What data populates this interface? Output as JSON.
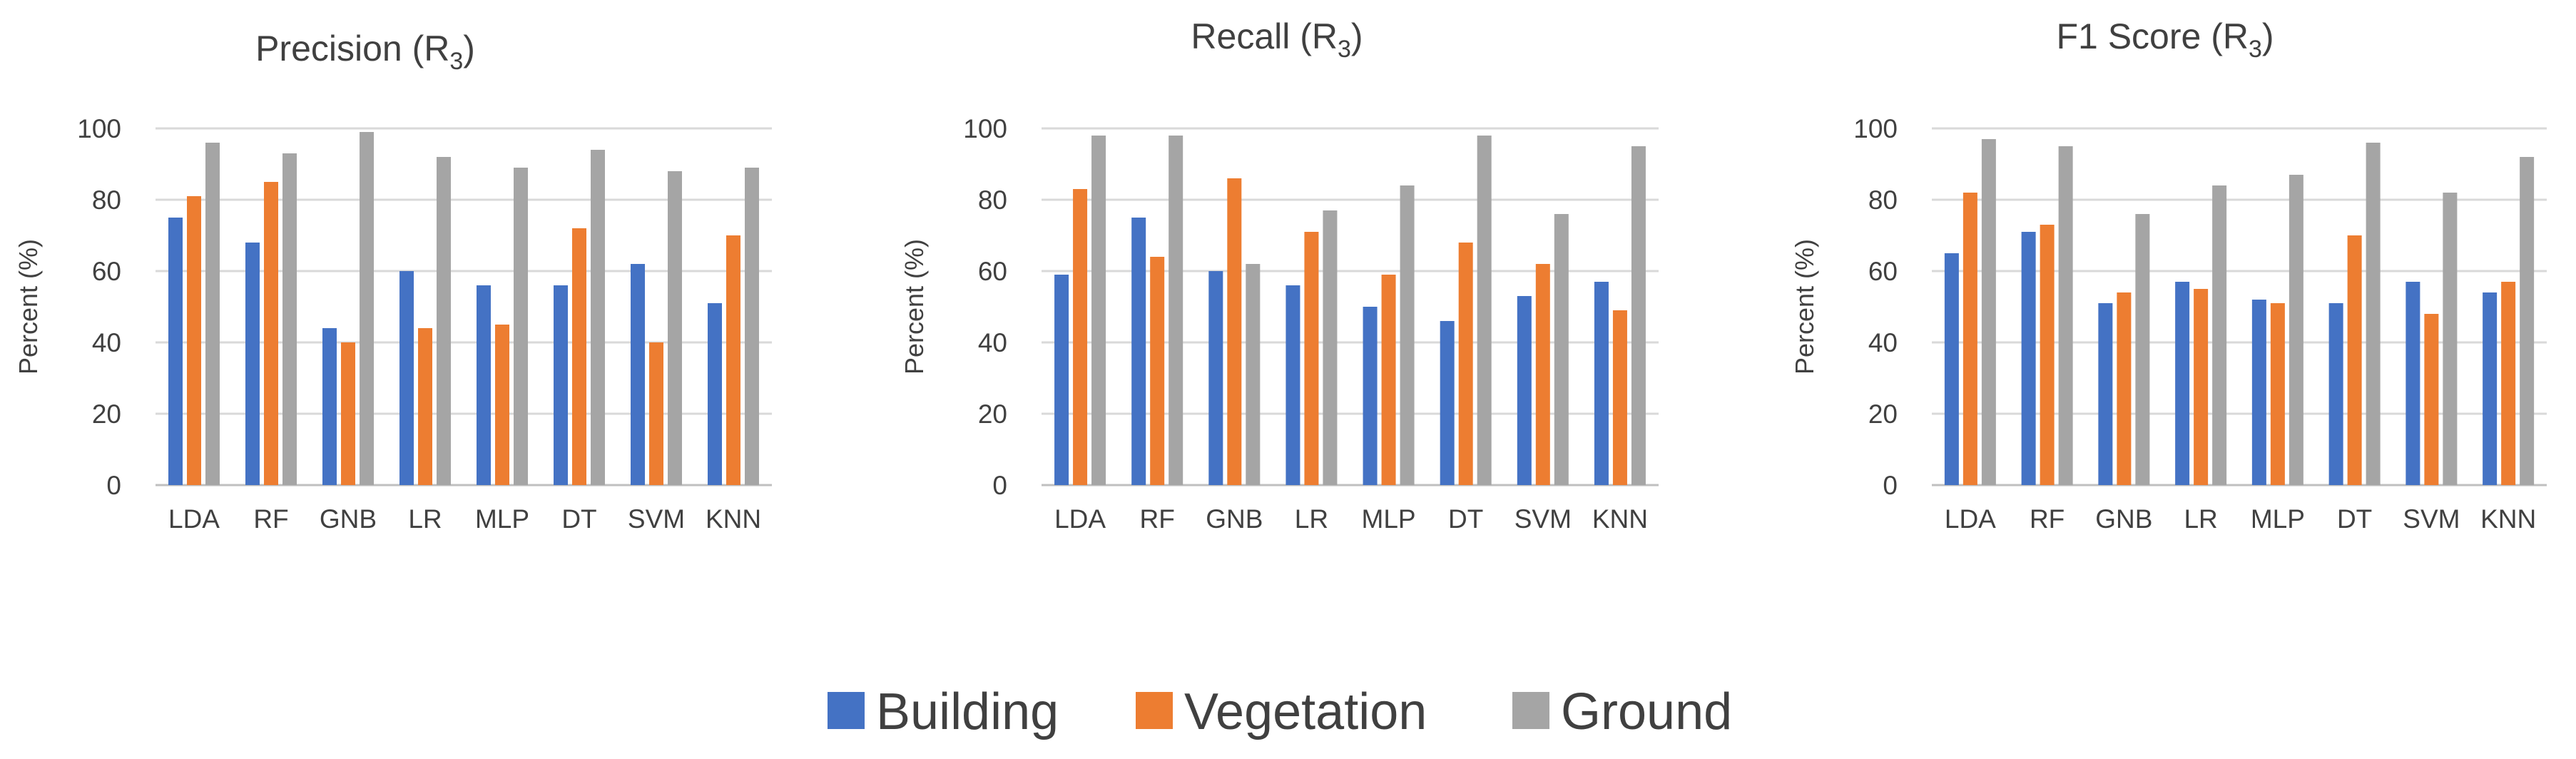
{
  "chart_data": [
    {
      "type": "bar",
      "title": "Precision (R",
      "title_subscript": "3",
      "title_suffix": ")",
      "xlabel": "",
      "ylabel": "Percent (%)",
      "ylim": [
        0,
        100
      ],
      "yticks": [
        "0",
        "20",
        "40",
        "60",
        "80",
        "100"
      ],
      "grid": true,
      "categories": [
        "LDA",
        "RF",
        "GNB",
        "LR",
        "MLP",
        "DT",
        "SVM",
        "KNN"
      ],
      "series": [
        {
          "name": "Building",
          "values": [
            75,
            68,
            44,
            60,
            56,
            56,
            62,
            51
          ]
        },
        {
          "name": "Vegetation",
          "values": [
            81,
            85,
            40,
            44,
            45,
            72,
            40,
            70
          ]
        },
        {
          "name": "Ground",
          "values": [
            96,
            93,
            99,
            92,
            89,
            94,
            88,
            89
          ]
        }
      ]
    },
    {
      "type": "bar",
      "title": "Recall (R",
      "title_subscript": "3",
      "title_suffix": ")",
      "xlabel": "",
      "ylabel": "Percent (%)",
      "ylim": [
        0,
        100
      ],
      "yticks": [
        "0",
        "20",
        "40",
        "60",
        "80",
        "100"
      ],
      "grid": true,
      "categories": [
        "LDA",
        "RF",
        "GNB",
        "LR",
        "MLP",
        "DT",
        "SVM",
        "KNN"
      ],
      "series": [
        {
          "name": "Building",
          "values": [
            59,
            75,
            60,
            56,
            50,
            46,
            53,
            57
          ]
        },
        {
          "name": "Vegetation",
          "values": [
            83,
            64,
            86,
            71,
            59,
            68,
            62,
            49
          ]
        },
        {
          "name": "Ground",
          "values": [
            98,
            98,
            62,
            77,
            84,
            98,
            76,
            95
          ]
        }
      ]
    },
    {
      "type": "bar",
      "title": "F1 Score (R",
      "title_subscript": "3",
      "title_suffix": ")",
      "xlabel": "",
      "ylabel": "Percent (%)",
      "ylim": [
        0,
        100
      ],
      "yticks": [
        "0",
        "20",
        "40",
        "60",
        "80",
        "100"
      ],
      "grid": true,
      "categories": [
        "LDA",
        "RF",
        "GNB",
        "LR",
        "MLP",
        "DT",
        "SVM",
        "KNN"
      ],
      "series": [
        {
          "name": "Building",
          "values": [
            65,
            71,
            51,
            57,
            52,
            51,
            57,
            54
          ]
        },
        {
          "name": "Vegetation",
          "values": [
            82,
            73,
            54,
            55,
            51,
            70,
            48,
            57
          ]
        },
        {
          "name": "Ground",
          "values": [
            97,
            95,
            76,
            84,
            87,
            96,
            82,
            92
          ]
        }
      ]
    }
  ],
  "legend": {
    "placement": "bottom-center",
    "items": [
      {
        "label": "Building",
        "color": "#4472c4"
      },
      {
        "label": "Vegetation",
        "color": "#ed7d31"
      },
      {
        "label": "Ground",
        "color": "#a5a5a5"
      }
    ]
  }
}
